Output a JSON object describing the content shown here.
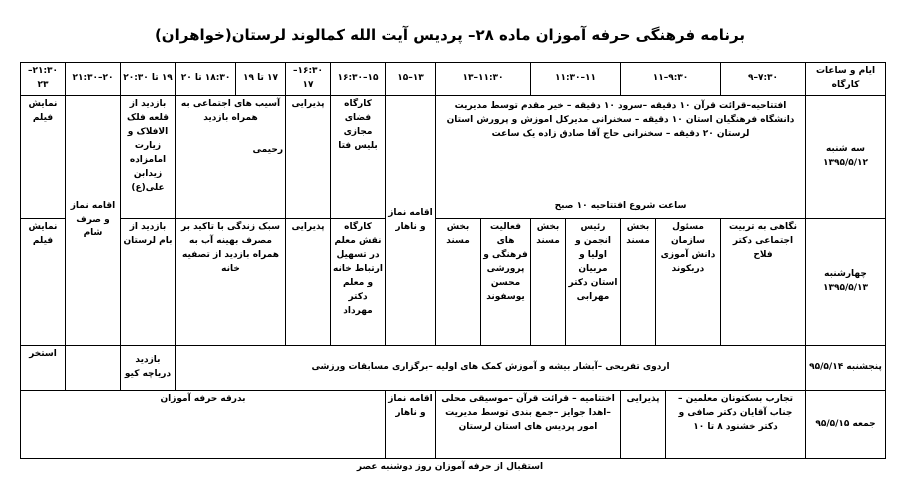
{
  "title": "برنامه فرهنگی حرفه آموزان ماده ۲۸– پردیس آیت الله کمالوند لرستان(خواهران)",
  "table": {
    "header": [
      "ایام و ساعات کارگاه",
      "۷:۳۰–۹",
      "۹:۳۰–۱۱",
      "۱۱–۱۱:۳۰",
      "۱۱:۳۰–۱۳",
      "۱۳–۱۵",
      "۱۵–۱۶:۳۰",
      "۱۶:۳۰–۱۷",
      "۱۷ تا ۱۹",
      "۱۸:۳۰ تا ۲۰",
      "۱۹ تا ۲۰:۳۰",
      "۲۰–۲۱:۳۰",
      "۲۱:۳۰–۲۳"
    ],
    "rows": [
      [
        "سه شنبه ۱۳۹۵/۵/۱۲",
        "افتتاحیه–قرائت قرآن ۱۰ دقیقه –سرود ۱۰ دقیقه – خیر مقدم توسط مدیریت دانشگاه فرهنگیان استان ۱۰ دقیقه – سخنرانی مدیرکل اموزش و پرورش استان لرستان ۲۰ دقیقه – سخنرانی حاج آقا صادق زاده یک ساعت",
        "ساعت شروع افتتاحیه ۱۰ صبح",
        "اقامه نماز و ناهار",
        "کارگاه فضای مجازی بلیس فتا",
        "پذیرایی",
        "آسیب های اجتماعی به همراه بازدید",
        "رحیمی",
        "بازدید از قلعه فلک الافلاک و زیارت امامزاده زیدابن علی(ع)",
        "اقامه نماز و صرف شام",
        "نمایش فیلم"
      ],
      [
        "چهارشنبه ۱۳۹۵/۵/۱۳",
        "نگاهی به تربیت اجتماعی دکتر فلاح",
        "مسئول سازمان دانش آموزی دربکوند",
        "بخش مسند",
        "رئیس انجمن و اولیا و مربیان استان دکتر مهرابی",
        "بخش مسند",
        "فعالیت های فرهنگی و پرورشی محسن یوسفوند",
        "بخش مسند",
        "کارگاه نقش معلم در تسهیل ارتباط خانه و معلم دکتر مهرداد",
        "پذیرایی",
        "سبک زندگی با تاکید بر مصرف بهینه آب به همراه بازدید از تصفیه خانه",
        "بازدید از بام لرستان",
        "نمایش فیلم"
      ],
      [
        "پنجشنبه ۹۵/۵/۱۴",
        "اردوی تفریحی –آبشار بیشه و آموزش کمک های اولیه –برگزاری مسابقات ورزشی",
        "بازدید دریاچه کیو",
        "استخر"
      ],
      [
        "جمعه ۹۵/۵/۱۵",
        "تجارب بسکتونان معلمین – جناب آقایان دکتر صافی و دکتر خشنود ۸ تا ۱۰",
        "پذیرایی",
        "اختتامیه – قرائت قرآن –موسیقی محلی –اهدا جوایز –جمع بندی توسط مدیریت امور پردیس های استان لرستان",
        "اقامه نماز و ناهار",
        "بدرقه حرفه آموزان"
      ]
    ]
  },
  "footer": "استقبال از حرفه آموزان روز دوشنبه عصر"
}
